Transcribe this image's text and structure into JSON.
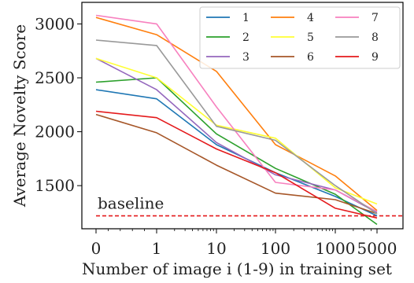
{
  "chart_data": {
    "type": "line",
    "title": "",
    "xlabel": "Number of image i (1-9) in training set",
    "ylabel": "Average Novelty Score",
    "x_scale": "symlog",
    "x_ticks": [
      0,
      1,
      10,
      100,
      1000,
      5000
    ],
    "x_tick_labels": [
      "0",
      "1",
      "10",
      "100",
      "1000",
      "5000"
    ],
    "y_ticks": [
      1500,
      2000,
      2500,
      3000
    ],
    "y_tick_labels": [
      "1500",
      "2000",
      "2500",
      "3000"
    ],
    "ylim": [
      1100,
      3200
    ],
    "grid": false,
    "legend_position": "top-right",
    "x": [
      0,
      1,
      10,
      100,
      1000,
      5000
    ],
    "series": [
      {
        "name": "1",
        "color": "#1f77b4",
        "values": [
          2390,
          2305,
          1880,
          1620,
          1400,
          1220
        ]
      },
      {
        "name": "2",
        "color": "#2ca02c",
        "values": [
          2460,
          2500,
          1980,
          1660,
          1420,
          1140
        ]
      },
      {
        "name": "3",
        "color": "#9467bd",
        "values": [
          2680,
          2390,
          1900,
          1600,
          1460,
          1250
        ]
      },
      {
        "name": "4",
        "color": "#ff7f0e",
        "values": [
          3060,
          2900,
          2560,
          1880,
          1590,
          1270
        ]
      },
      {
        "name": "5",
        "color": "#ffff33",
        "values": [
          2680,
          2500,
          2060,
          1940,
          1480,
          1330
        ]
      },
      {
        "name": "6",
        "color": "#a65628",
        "values": [
          2160,
          1990,
          1690,
          1430,
          1370,
          1240
        ]
      },
      {
        "name": "7",
        "color": "#f781bf",
        "values": [
          3080,
          3000,
          2230,
          1530,
          1460,
          1260
        ]
      },
      {
        "name": "8",
        "color": "#999999",
        "values": [
          2850,
          2800,
          2050,
          1920,
          1500,
          1240
        ]
      },
      {
        "name": "9",
        "color": "#e41a1c",
        "values": [
          2190,
          2130,
          1840,
          1620,
          1290,
          1200
        ]
      }
    ],
    "baseline": {
      "label": "baseline",
      "value": 1220,
      "color": "#e41a1c"
    }
  }
}
